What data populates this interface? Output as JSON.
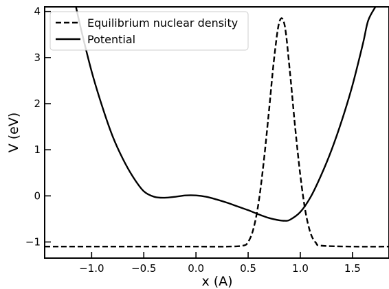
{
  "chart_data": {
    "type": "line",
    "xlabel": "x (A)",
    "ylabel": "V (eV)",
    "xlim": [
      -1.45,
      1.85
    ],
    "ylim": [
      -1.35,
      4.1
    ],
    "x_ticks": [
      -1.0,
      -0.5,
      0.0,
      0.5,
      1.0,
      1.5
    ],
    "x_tick_labels": [
      "−1.0",
      "−0.5",
      "0.0",
      "0.5",
      "1.0",
      "1.5"
    ],
    "y_ticks": [
      -1,
      0,
      1,
      2,
      3,
      4
    ],
    "y_tick_labels": [
      "−1",
      "0",
      "1",
      "2",
      "3",
      "4"
    ],
    "grid": false,
    "legend_position": "top-left",
    "series": [
      {
        "name": "Equilibrium nuclear density",
        "style": "dashed",
        "color": "#000000",
        "x": [
          -1.45,
          -1.0,
          -0.5,
          0.0,
          0.3,
          0.45,
          0.5,
          0.55,
          0.6,
          0.65,
          0.7,
          0.75,
          0.8,
          0.85,
          0.9,
          0.95,
          1.0,
          1.05,
          1.1,
          1.15,
          1.2,
          1.5,
          1.85
        ],
        "y": [
          -1.1,
          -1.1,
          -1.1,
          -1.1,
          -1.1,
          -1.08,
          -1.0,
          -0.72,
          -0.15,
          0.75,
          1.85,
          3.0,
          3.78,
          3.7,
          2.7,
          1.5,
          0.45,
          -0.35,
          -0.82,
          -1.02,
          -1.08,
          -1.1,
          -1.1
        ]
      },
      {
        "name": "Potential",
        "style": "solid",
        "color": "#000000",
        "x": [
          -1.15,
          -1.1,
          -1.0,
          -0.9,
          -0.8,
          -0.7,
          -0.6,
          -0.5,
          -0.4,
          -0.3,
          -0.2,
          -0.1,
          0.0,
          0.1,
          0.2,
          0.3,
          0.4,
          0.5,
          0.6,
          0.7,
          0.8,
          0.85,
          0.9,
          1.0,
          1.1,
          1.2,
          1.3,
          1.4,
          1.5,
          1.6,
          1.65,
          1.72
        ],
        "y": [
          4.1,
          3.6,
          2.7,
          1.95,
          1.3,
          0.8,
          0.4,
          0.1,
          -0.02,
          -0.04,
          -0.02,
          0.01,
          0.01,
          -0.02,
          -0.08,
          -0.15,
          -0.23,
          -0.31,
          -0.4,
          -0.48,
          -0.53,
          -0.54,
          -0.52,
          -0.35,
          -0.02,
          0.45,
          1.0,
          1.65,
          2.4,
          3.3,
          3.8,
          4.1
        ]
      }
    ]
  }
}
